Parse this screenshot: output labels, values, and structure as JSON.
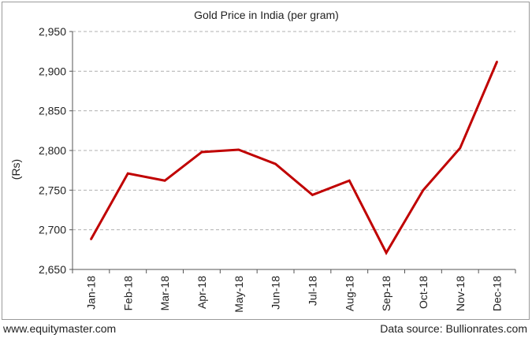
{
  "chart_data": {
    "type": "line",
    "title": "Gold Price in India (per gram)",
    "xlabel": "",
    "ylabel": "(Rs)",
    "categories": [
      "Jan-18",
      "Feb-18",
      "Mar-18",
      "Apr-18",
      "May-18",
      "Jun-18",
      "Jul-18",
      "Aug-18",
      "Sep-18",
      "Oct-18",
      "Nov-18",
      "Dec-18"
    ],
    "series": [
      {
        "values": [
          2688,
          2771,
          2762,
          2798,
          2801,
          2783,
          2744,
          2762,
          2671,
          2750,
          2803,
          2912
        ],
        "color": "#c00000"
      }
    ],
    "ylim": [
      2650,
      2950
    ],
    "yticks": [
      2650,
      2700,
      2750,
      2800,
      2850,
      2900,
      2950
    ],
    "ytick_labels": [
      "2,650",
      "2,700",
      "2,750",
      "2,800",
      "2,850",
      "2,900",
      "2,950"
    ],
    "grid": true,
    "grid_style": "dashed",
    "legend": "none"
  },
  "footer": {
    "source_left": "www.equitymaster.com",
    "source_right": "Data source: Bullionrates.com"
  }
}
